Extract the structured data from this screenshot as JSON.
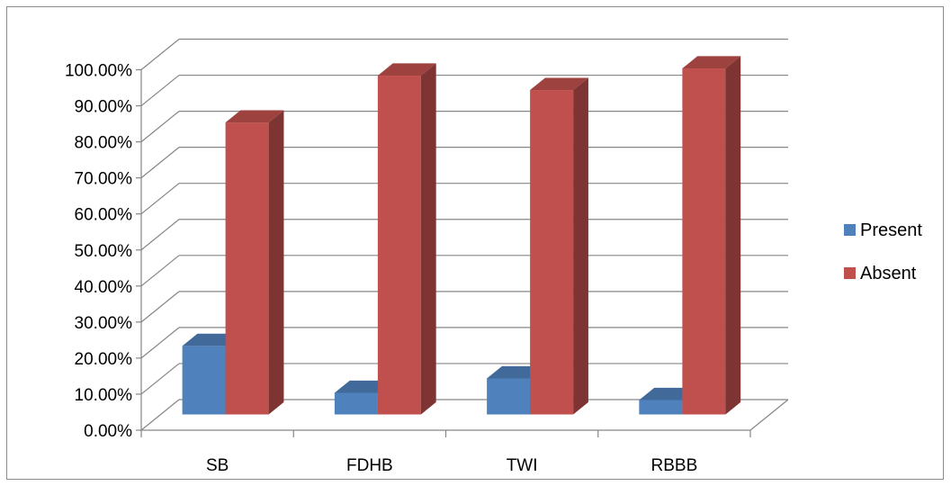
{
  "chart_data": {
    "type": "bar",
    "categories": [
      "SB",
      "FDHB",
      "TWI",
      "RBBB"
    ],
    "series": [
      {
        "name": "Present",
        "values": [
          19,
          6,
          10,
          4
        ],
        "color": "#4F81BD"
      },
      {
        "name": "Absent",
        "values": [
          81,
          94,
          90,
          96
        ],
        "color": "#C0504D"
      }
    ],
    "yticks": [
      "0.00%",
      "10.00%",
      "20.00%",
      "30.00%",
      "40.00%",
      "50.00%",
      "60.00%",
      "70.00%",
      "80.00%",
      "90.00%",
      "100.00%"
    ],
    "ylim": [
      0,
      100
    ],
    "grid": true,
    "legend_position": "right",
    "style": "3d-column"
  }
}
